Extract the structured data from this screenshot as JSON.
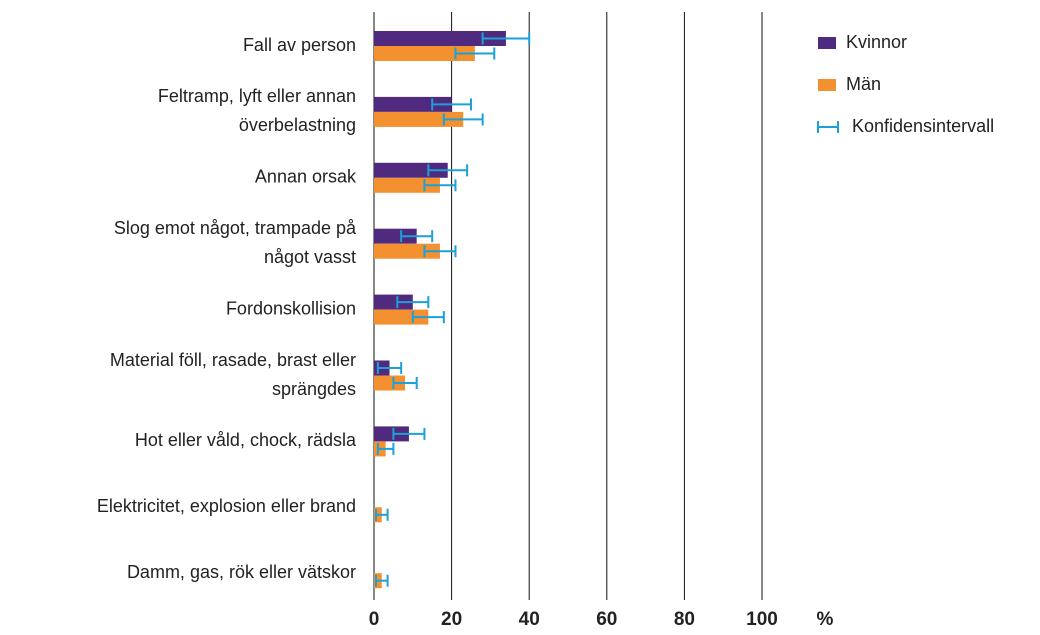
{
  "chart_data": {
    "type": "bar",
    "orientation": "horizontal",
    "categories": [
      [
        "Fall av person"
      ],
      [
        "Feltramp, lyft eller annan",
        "överbelastning"
      ],
      [
        "Annan orsak"
      ],
      [
        "Slog emot något, trampade på",
        "något vasst"
      ],
      [
        "Fordonskollision"
      ],
      [
        "Material föll, rasade, brast eller",
        "sprängdes"
      ],
      [
        "Hot eller våld, chock, rädsla"
      ],
      [
        "Elektricitet, explosion eller brand"
      ],
      [
        "Damm, gas, rök eller vätskor"
      ]
    ],
    "series": [
      {
        "name": "Kvinnor",
        "color": "#4f2a7e",
        "values": [
          34,
          20,
          19,
          11,
          10,
          4,
          9,
          null,
          null
        ],
        "errors": [
          6,
          5,
          5,
          4,
          4,
          3,
          4,
          null,
          null
        ]
      },
      {
        "name": "Män",
        "color": "#f39131",
        "values": [
          26,
          23,
          17,
          17,
          14,
          8,
          3,
          2,
          2
        ],
        "errors": [
          5,
          5,
          4,
          4,
          4,
          3,
          2,
          1.5,
          1.5
        ]
      }
    ],
    "error_color": "#1ba0d8",
    "error_label": "Konfidensintervall",
    "xlabel": "%",
    "xlim": [
      0,
      100
    ],
    "xticks": [
      0,
      20,
      40,
      60,
      80,
      100
    ],
    "grid": true,
    "legend": "upper right"
  }
}
